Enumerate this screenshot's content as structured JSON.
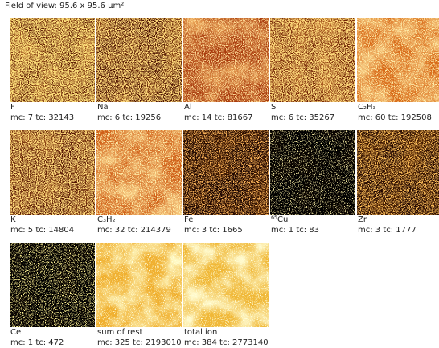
{
  "header": {
    "title": "Field of view: 95.6 x 95.6 µm²"
  },
  "tiles": [
    {
      "label": "F",
      "stats": "mc: 7 tc: 32143"
    },
    {
      "label": "Na",
      "stats": "mc: 6 tc: 19256"
    },
    {
      "label": "Al",
      "stats": "mc: 14 tc: 81667"
    },
    {
      "label": "S",
      "stats": "mc: 6 tc: 35267"
    },
    {
      "label": "C₂H₃",
      "stats": "mc: 60 tc: 192508"
    },
    {
      "label": "K",
      "stats": "mc: 5 tc: 14804"
    },
    {
      "label": "C₃H₂",
      "stats": "mc: 32 tc: 214379"
    },
    {
      "label": "Fe",
      "stats": "mc: 3 tc: 1665"
    },
    {
      "label": "⁶⁵Cu",
      "stats": "mc: 1 tc: 83"
    },
    {
      "label": "Zr",
      "stats": "mc: 3 tc: 1777"
    },
    {
      "label": "Ce",
      "stats": "mc: 1 tc: 472"
    },
    {
      "label": "sum of rest",
      "stats": "mc: 325 tc: 2193010"
    },
    {
      "label": "total ion",
      "stats": "mc: 384 tc: 2773140"
    }
  ]
}
